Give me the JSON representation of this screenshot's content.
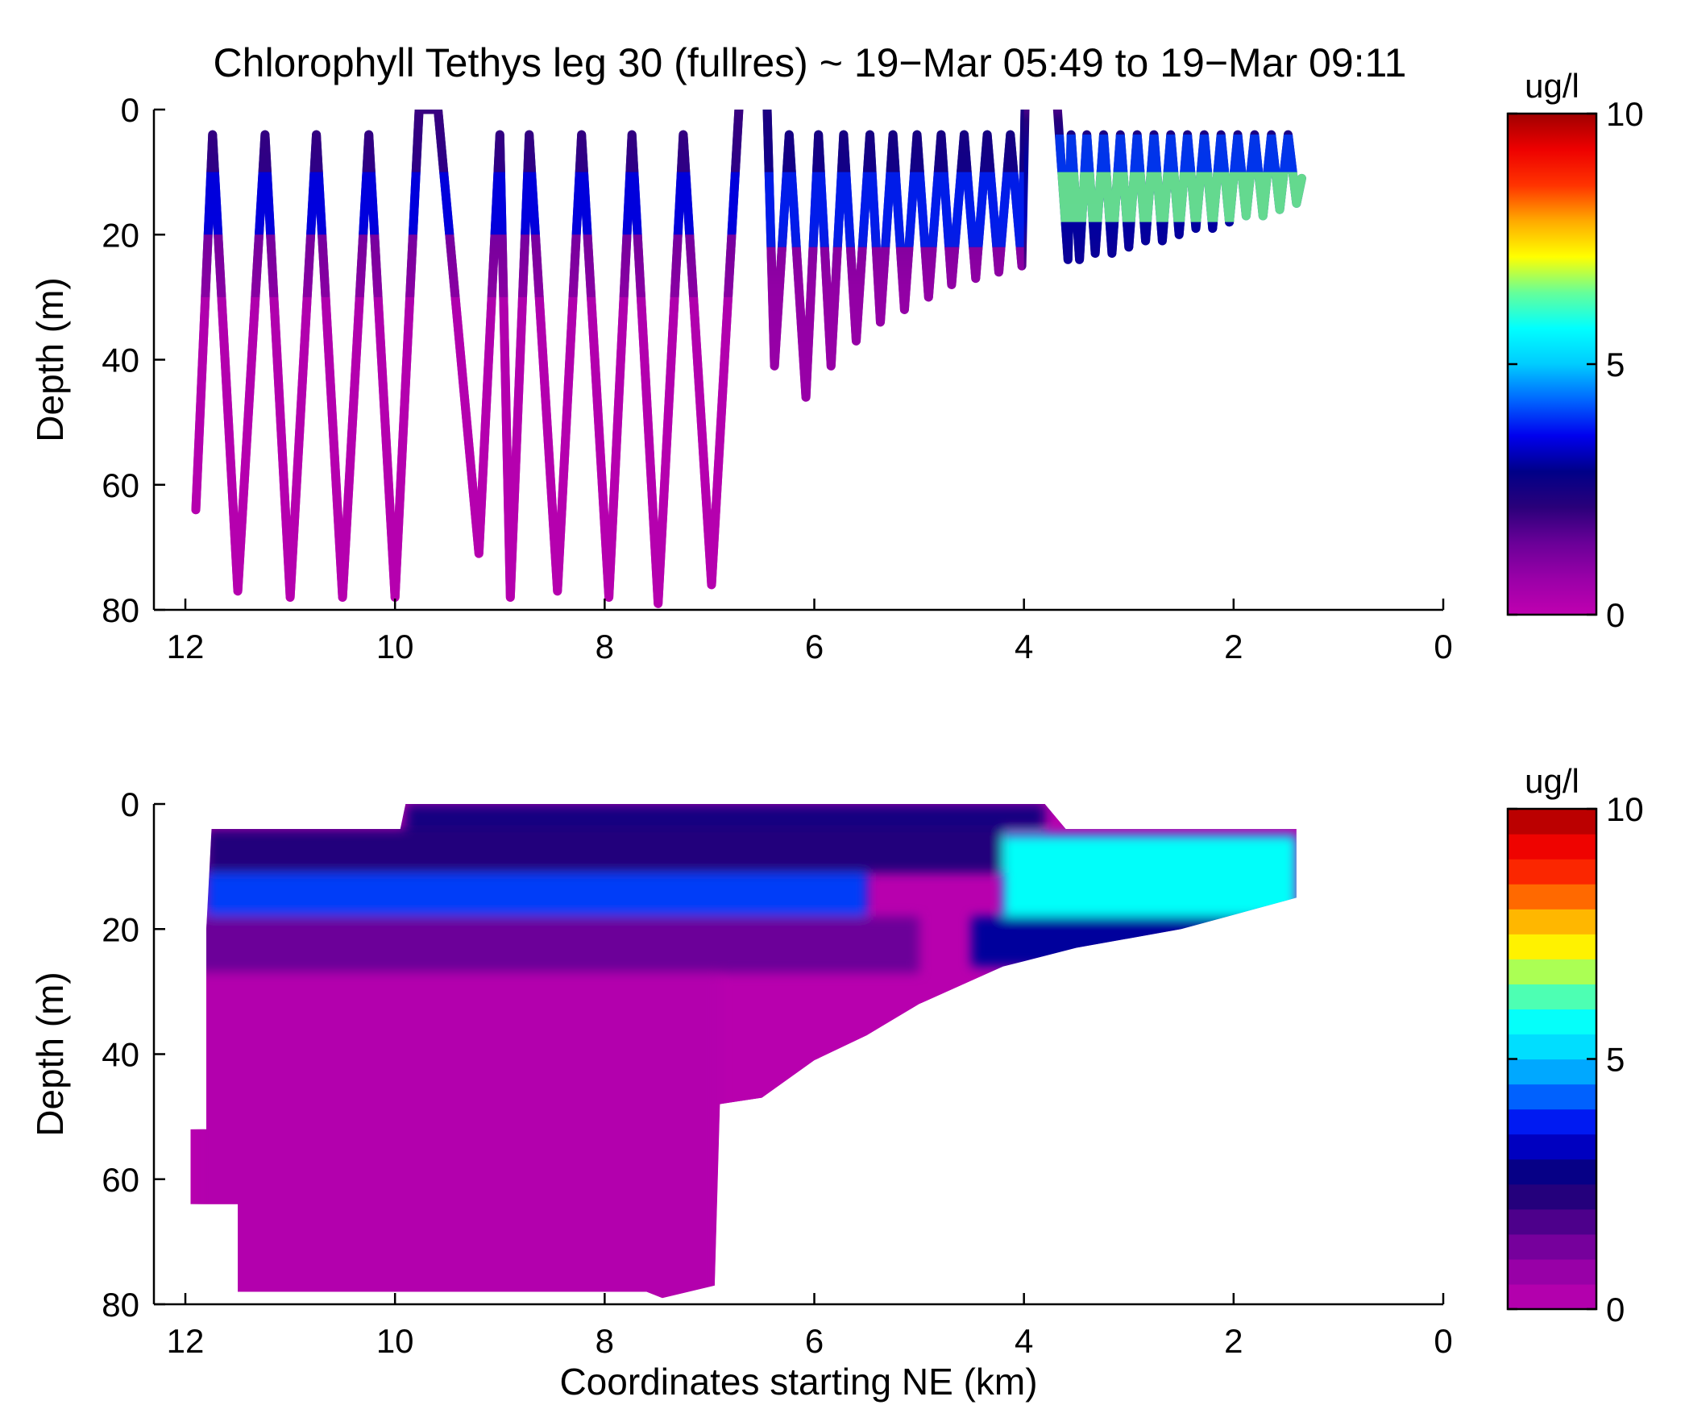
{
  "title": "Chlorophyll Tethys leg 30 (fullres) ~ 19−Mar 05:49 to 19−Mar 09:11",
  "colorbar": {
    "unit": "ug/l",
    "ticks": [
      "0",
      "5",
      "10"
    ],
    "min": 0,
    "max": 10,
    "colormap": "jet-with-magenta-low",
    "stops": [
      "#c000b0",
      "#9a00a8",
      "#6a0098",
      "#2a007a",
      "#000088",
      "#0000ee",
      "#0066ff",
      "#00ccff",
      "#00ffff",
      "#66ff99",
      "#ffff00",
      "#ffaa00",
      "#ff3300",
      "#ee0000",
      "#a00000"
    ]
  },
  "chart_data": [
    {
      "type": "scatter",
      "subtype": "tracklines-colored-by-value",
      "title": "Chlorophyll Tethys leg 30 (fullres) ~ 19−Mar 05:49 to 19−Mar 09:11",
      "xlabel": "",
      "ylabel": "Depth (m)",
      "xlim": [
        12.3,
        0
      ],
      "ylim": [
        0,
        80
      ],
      "x_reversed": true,
      "y_reversed": true,
      "xticks": [
        "12",
        "10",
        "8",
        "6",
        "4",
        "2",
        "0"
      ],
      "yticks": [
        "0",
        "20",
        "40",
        "60",
        "80"
      ],
      "color_unit": "ug/l",
      "color_range": [
        0,
        10
      ],
      "track_vertices": [
        {
          "x": 11.9,
          "depth": 64
        },
        {
          "x": 11.74,
          "depth": 4
        },
        {
          "x": 11.5,
          "depth": 77
        },
        {
          "x": 11.24,
          "depth": 4
        },
        {
          "x": 11.0,
          "depth": 78
        },
        {
          "x": 10.75,
          "depth": 4
        },
        {
          "x": 10.5,
          "depth": 78
        },
        {
          "x": 10.25,
          "depth": 4
        },
        {
          "x": 10.0,
          "depth": 78
        },
        {
          "x": 9.77,
          "depth": 0
        },
        {
          "x": 9.59,
          "depth": 0
        },
        {
          "x": 9.2,
          "depth": 71
        },
        {
          "x": 9.0,
          "depth": 4
        },
        {
          "x": 8.9,
          "depth": 78
        },
        {
          "x": 8.72,
          "depth": 4
        },
        {
          "x": 8.45,
          "depth": 77
        },
        {
          "x": 8.22,
          "depth": 4
        },
        {
          "x": 7.96,
          "depth": 78
        },
        {
          "x": 7.74,
          "depth": 4
        },
        {
          "x": 7.49,
          "depth": 79
        },
        {
          "x": 7.25,
          "depth": 4
        },
        {
          "x": 6.98,
          "depth": 76
        },
        {
          "x": 6.72,
          "depth": 0
        },
        {
          "x": 6.45,
          "depth": 0
        },
        {
          "x": 6.38,
          "depth": 41
        },
        {
          "x": 6.24,
          "depth": 4
        },
        {
          "x": 6.08,
          "depth": 46
        },
        {
          "x": 5.96,
          "depth": 4
        },
        {
          "x": 5.84,
          "depth": 41
        },
        {
          "x": 5.72,
          "depth": 4
        },
        {
          "x": 5.6,
          "depth": 37
        },
        {
          "x": 5.47,
          "depth": 4
        },
        {
          "x": 5.37,
          "depth": 34
        },
        {
          "x": 5.25,
          "depth": 4
        },
        {
          "x": 5.14,
          "depth": 32
        },
        {
          "x": 5.02,
          "depth": 4
        },
        {
          "x": 4.91,
          "depth": 30
        },
        {
          "x": 4.79,
          "depth": 4
        },
        {
          "x": 4.69,
          "depth": 28
        },
        {
          "x": 4.57,
          "depth": 4
        },
        {
          "x": 4.46,
          "depth": 27
        },
        {
          "x": 4.35,
          "depth": 4
        },
        {
          "x": 4.24,
          "depth": 26
        },
        {
          "x": 4.13,
          "depth": 4
        },
        {
          "x": 4.02,
          "depth": 25
        },
        {
          "x": 3.99,
          "depth": 0
        },
        {
          "x": 3.68,
          "depth": 0
        },
        {
          "x": 3.58,
          "depth": 24
        },
        {
          "x": 3.55,
          "depth": 4
        },
        {
          "x": 3.47,
          "depth": 24
        },
        {
          "x": 3.4,
          "depth": 4
        },
        {
          "x": 3.32,
          "depth": 23
        },
        {
          "x": 3.24,
          "depth": 4
        },
        {
          "x": 3.16,
          "depth": 23
        },
        {
          "x": 3.08,
          "depth": 4
        },
        {
          "x": 3.0,
          "depth": 22
        },
        {
          "x": 2.92,
          "depth": 4
        },
        {
          "x": 2.84,
          "depth": 21
        },
        {
          "x": 2.76,
          "depth": 4
        },
        {
          "x": 2.68,
          "depth": 21
        },
        {
          "x": 2.6,
          "depth": 4
        },
        {
          "x": 2.52,
          "depth": 20
        },
        {
          "x": 2.44,
          "depth": 4
        },
        {
          "x": 2.36,
          "depth": 19
        },
        {
          "x": 2.28,
          "depth": 4
        },
        {
          "x": 2.2,
          "depth": 19
        },
        {
          "x": 2.12,
          "depth": 4
        },
        {
          "x": 2.04,
          "depth": 18
        },
        {
          "x": 1.96,
          "depth": 4
        },
        {
          "x": 1.88,
          "depth": 17
        },
        {
          "x": 1.8,
          "depth": 4
        },
        {
          "x": 1.72,
          "depth": 17
        },
        {
          "x": 1.64,
          "depth": 4
        },
        {
          "x": 1.56,
          "depth": 16
        },
        {
          "x": 1.48,
          "depth": 4
        },
        {
          "x": 1.4,
          "depth": 15
        },
        {
          "x": 1.35,
          "depth": 11
        }
      ],
      "chlorophyll_profile": [
        {
          "x_range": [
            12,
            6.5
          ],
          "depth_range": [
            0,
            10
          ],
          "value": 2.0
        },
        {
          "x_range": [
            12,
            6.5
          ],
          "depth_range": [
            10,
            20
          ],
          "value": 3.5
        },
        {
          "x_range": [
            12,
            6.5
          ],
          "depth_range": [
            20,
            30
          ],
          "value": 1.0
        },
        {
          "x_range": [
            12,
            6.5
          ],
          "depth_range": [
            30,
            80
          ],
          "value": 0.2
        },
        {
          "x_range": [
            6.5,
            4
          ],
          "depth_range": [
            0,
            10
          ],
          "value": 2.5
        },
        {
          "x_range": [
            6.5,
            4
          ],
          "depth_range": [
            10,
            22
          ],
          "value": 3.8
        },
        {
          "x_range": [
            6.5,
            4
          ],
          "depth_range": [
            22,
            50
          ],
          "value": 0.8
        },
        {
          "x_range": [
            3.7,
            1.3
          ],
          "depth_range": [
            4,
            10
          ],
          "value": 4.0
        },
        {
          "x_range": [
            3.7,
            1.3
          ],
          "depth_range": [
            10,
            18
          ],
          "value": 6.5
        },
        {
          "x_range": [
            3.7,
            1.3
          ],
          "depth_range": [
            18,
            25
          ],
          "value": 3.0
        }
      ]
    },
    {
      "type": "heatmap",
      "subtype": "filled-contour",
      "title": "",
      "xlabel": "Coordinates starting NE (km)",
      "ylabel": "Depth (m)",
      "xlim": [
        12.3,
        0
      ],
      "ylim": [
        0,
        80
      ],
      "x_reversed": true,
      "y_reversed": true,
      "xticks": [
        "12",
        "10",
        "8",
        "6",
        "4",
        "2",
        "0"
      ],
      "yticks": [
        "0",
        "20",
        "40",
        "60",
        "80"
      ],
      "color_unit": "ug/l",
      "color_range": [
        0,
        10
      ],
      "contour_levels": 20,
      "layers": [
        {
          "depth_range": [
            0,
            4
          ],
          "x_range": [
            9.9,
            3.8
          ],
          "value_range": [
            2.0,
            3.0
          ]
        },
        {
          "depth_range": [
            4,
            11
          ],
          "x_range": [
            11.8,
            4.2
          ],
          "value_range": [
            1.5,
            3.0
          ]
        },
        {
          "depth_range": [
            11,
            18
          ],
          "x_range": [
            11.8,
            5.5
          ],
          "value_range": [
            3.5,
            4.5
          ]
        },
        {
          "depth_range": [
            18,
            27
          ],
          "x_range": [
            11.9,
            5.0
          ],
          "value_range": [
            0.8,
            2.0
          ]
        },
        {
          "depth_range": [
            27,
            80
          ],
          "x_range": [
            11.9,
            6.9
          ],
          "value_range": [
            0.0,
            0.5
          ]
        },
        {
          "depth_range": [
            5,
            18
          ],
          "x_range": [
            4.2,
            1.4
          ],
          "value_range": [
            4.0,
            7.5
          ]
        },
        {
          "depth_range": [
            18,
            26
          ],
          "x_range": [
            4.5,
            1.8
          ],
          "value_range": [
            2.5,
            3.5
          ]
        }
      ]
    }
  ]
}
